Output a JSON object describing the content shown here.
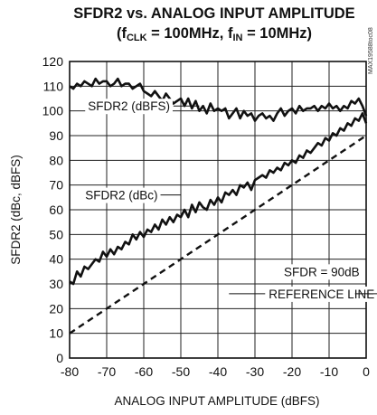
{
  "chart_data": {
    "type": "line",
    "title": "SFDR2 vs. ANALOG INPUT AMPLITUDE",
    "subtitle_parts": {
      "open": "(f",
      "clk_sub": "CLK",
      "mid": " = 100MHz, f",
      "in_sub": "IN",
      "close": " = 10MHz)"
    },
    "xlabel": "ANALOG INPUT AMPLITUDE (dBFS)",
    "ylabel": "SFDR2 (dBc, dBFS)",
    "xlim": [
      -80,
      0
    ],
    "ylim": [
      0,
      120
    ],
    "xticks": [
      -80,
      -70,
      -60,
      -50,
      -40,
      -30,
      -20,
      -10,
      0
    ],
    "yticks": [
      0,
      10,
      20,
      30,
      40,
      50,
      60,
      70,
      80,
      90,
      100,
      110,
      120
    ],
    "grid": true,
    "figure_code": "MAX19588toc08",
    "annotations": {
      "dbfs": "SFDR2 (dBFS)",
      "dbc": "SFDR2 (dBc)",
      "ref_line1": "SFDR = 90dB",
      "ref_line2": "REFERENCE LINE"
    },
    "series": [
      {
        "name": "SFDR2 (dBFS)",
        "color": "#111111",
        "x": [
          -80,
          -79,
          -78,
          -77,
          -76,
          -75,
          -74,
          -73,
          -72,
          -71,
          -70,
          -69,
          -68,
          -67,
          -66,
          -65,
          -64,
          -63,
          -62,
          -61,
          -60,
          -59,
          -58,
          -57,
          -56,
          -55,
          -54,
          -53,
          -52,
          -51,
          -50,
          -49,
          -48,
          -47,
          -46,
          -45,
          -44,
          -43,
          -42,
          -41,
          -40,
          -39,
          -38,
          -37,
          -36,
          -35,
          -34,
          -33,
          -32,
          -31,
          -30,
          -29,
          -28,
          -27,
          -26,
          -25,
          -24,
          -23,
          -22,
          -21,
          -20,
          -19,
          -18,
          -17,
          -16,
          -15,
          -14,
          -13,
          -12,
          -11,
          -10,
          -9,
          -8,
          -7,
          -6,
          -5,
          -4,
          -3,
          -2,
          -1,
          0
        ],
        "y": [
          110,
          109,
          111,
          110,
          112,
          111,
          110,
          113,
          111,
          112,
          112,
          110,
          111,
          113,
          110,
          111,
          111,
          109,
          110,
          111,
          108,
          107,
          106,
          108,
          106,
          104,
          107,
          105,
          103,
          104,
          105,
          102,
          105,
          101,
          104,
          100,
          102,
          99,
          103,
          100,
          101,
          100,
          101,
          97,
          99,
          101,
          97,
          100,
          98,
          99,
          96,
          98,
          99,
          97,
          98,
          96,
          99,
          101,
          98,
          100,
          101,
          99,
          102,
          100,
          101,
          101,
          102,
          100,
          102,
          101,
          103,
          101,
          102,
          100,
          102,
          101,
          104,
          103,
          105,
          102,
          98
        ]
      },
      {
        "name": "SFDR2 (dBc)",
        "color": "#111111",
        "x": [
          -80,
          -79,
          -78,
          -77,
          -76,
          -75,
          -74,
          -73,
          -72,
          -71,
          -70,
          -69,
          -68,
          -67,
          -66,
          -65,
          -64,
          -63,
          -62,
          -61,
          -60,
          -59,
          -58,
          -57,
          -56,
          -55,
          -54,
          -53,
          -52,
          -51,
          -50,
          -49,
          -48,
          -47,
          -46,
          -45,
          -44,
          -43,
          -42,
          -41,
          -40,
          -39,
          -38,
          -37,
          -36,
          -35,
          -34,
          -33,
          -32,
          -31,
          -30,
          -29,
          -28,
          -27,
          -26,
          -25,
          -24,
          -23,
          -22,
          -21,
          -20,
          -19,
          -18,
          -17,
          -16,
          -15,
          -14,
          -13,
          -12,
          -11,
          -10,
          -9,
          -8,
          -7,
          -6,
          -5,
          -4,
          -3,
          -2,
          -1,
          0
        ],
        "y": [
          31,
          30,
          35,
          33,
          37,
          36,
          38,
          40,
          39,
          43,
          41,
          44,
          42,
          45,
          44,
          47,
          46,
          50,
          48,
          51,
          49,
          52,
          51,
          54,
          52,
          56,
          54,
          57,
          55,
          58,
          57,
          60,
          57,
          62,
          59,
          63,
          61,
          60,
          64,
          62,
          65,
          63,
          67,
          66,
          68,
          66,
          70,
          69,
          71,
          68,
          72,
          73,
          74,
          73,
          76,
          75,
          77,
          76,
          79,
          78,
          80,
          79,
          82,
          81,
          84,
          83,
          85,
          87,
          86,
          89,
          88,
          91,
          90,
          93,
          92,
          95,
          94,
          97,
          96,
          99,
          95
        ]
      },
      {
        "name": "SFDR = 90dB REFERENCE LINE",
        "color": "#111111",
        "dashed": true,
        "x": [
          -80,
          0
        ],
        "y": [
          10,
          90
        ]
      }
    ]
  }
}
